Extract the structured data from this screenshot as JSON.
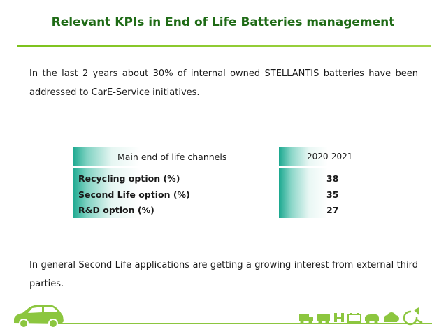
{
  "title": "Relevant KPIs in End of Life Batteries management",
  "intro": "In the last 2 years about 30% of internal owned STELLANTIS batteries have been addressed to CarE-Service initiatives.",
  "table": {
    "header_channels": "Main end of life channels",
    "header_period": "2020-2021",
    "rows": [
      {
        "label": "Recycling option (%)",
        "value": "38"
      },
      {
        "label": "Second Life option (%)",
        "value": "35"
      },
      {
        "label": "R&D option (%)",
        "value": "27"
      }
    ]
  },
  "outro": "In general Second Life applications are getting a growing interest from external third parties.",
  "colors": {
    "title": "#1f6b16",
    "accent_green": "#8cc63f",
    "teal": "#1aa88f"
  },
  "icons": [
    "car-icon",
    "truck-icon",
    "van-icon",
    "charging-icon",
    "battery-icon",
    "vehicle-icon",
    "cloud-icon",
    "recycle-plug-icon"
  ]
}
